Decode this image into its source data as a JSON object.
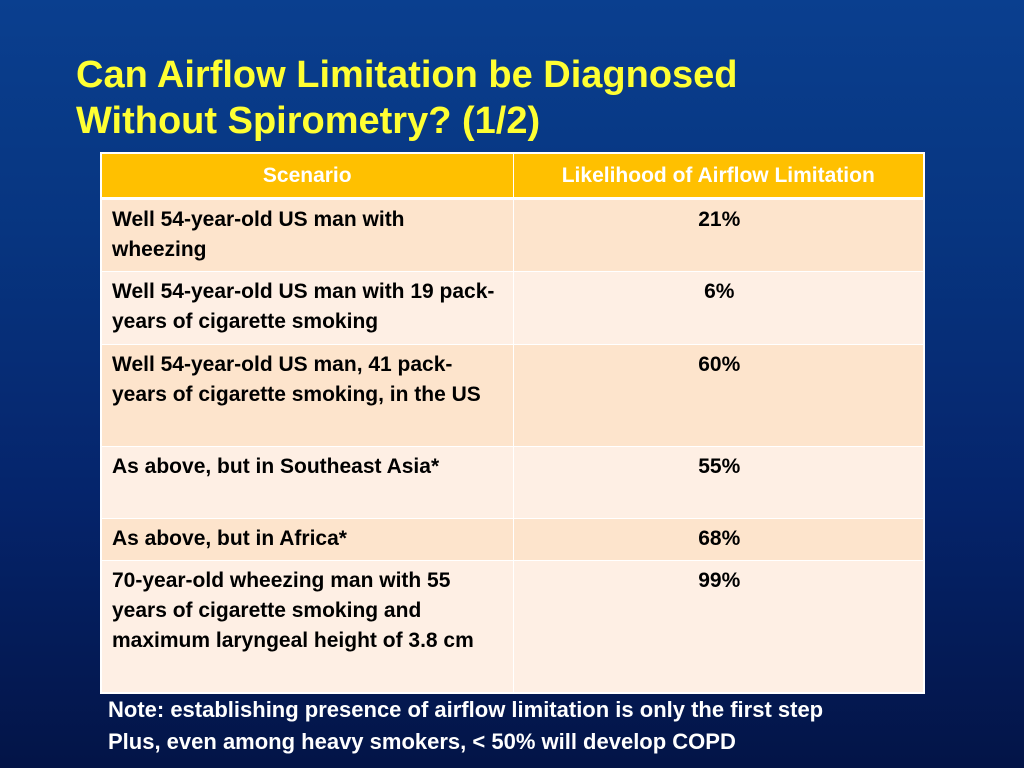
{
  "slide": {
    "title_line1": "Can Airflow Limitation be Diagnosed",
    "title_line2": "Without Spirometry? (1/2)"
  },
  "table": {
    "headers": [
      "Scenario",
      "Likelihood of Airflow Limitation"
    ],
    "rows": [
      {
        "scenario": "Well 54-year-old US man with wheezing",
        "likelihood": "21%"
      },
      {
        "scenario": "Well 54-year-old US man with 19 pack-years of cigarette smoking",
        "likelihood": "6%"
      },
      {
        "scenario": "Well 54-year-old US man, 41 pack-years of cigarette smoking, in the US",
        "likelihood": "60%"
      },
      {
        "scenario": "As above, but in Southeast Asia*",
        "likelihood": "55%"
      },
      {
        "scenario": "As above, but in Africa*",
        "likelihood": "68%"
      },
      {
        "scenario": "70-year-old wheezing man with 55 years of cigarette smoking and maximum laryngeal height of 3.8 cm",
        "likelihood": "99%"
      }
    ]
  },
  "notes": [
    "Note: establishing presence of airflow limitation is only the first step",
    "Plus, even among heavy smokers, < 50% will develop COPD"
  ],
  "colors": {
    "title": "#ffff33",
    "header_bg": "#ffc000",
    "row_odd_bg": "#fde4cc",
    "row_even_bg": "#feefe4",
    "background": "#073580"
  }
}
